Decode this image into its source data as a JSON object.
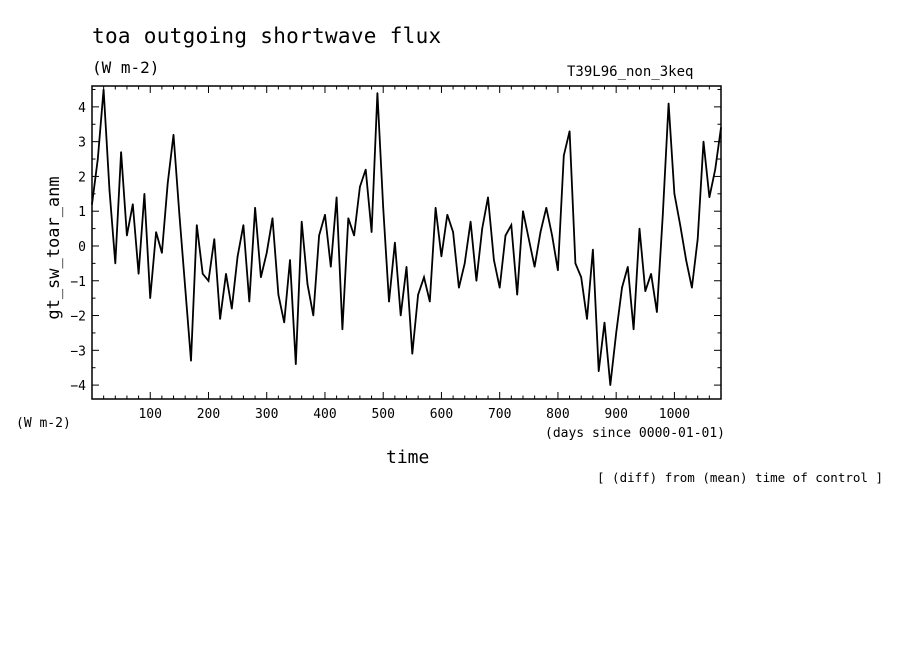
{
  "chart_data": {
    "type": "line",
    "title": "toa outgoing shortwave flux",
    "units_label": "(W m-2)",
    "run_label": "T39L96_non_3keq",
    "ylabel": "gt_sw_toar_anm",
    "y_units": "(W m-2)",
    "xlabel": "time",
    "x_units": "(days since 0000-01-01)",
    "note": "[ (diff) from (mean) time of control ]",
    "xlim": [
      0,
      1080
    ],
    "ylim": [
      -4.4,
      4.6
    ],
    "xticks": [
      100,
      200,
      300,
      400,
      500,
      600,
      700,
      800,
      900,
      1000
    ],
    "yticks": [
      4,
      3,
      2,
      1,
      0,
      -1,
      -2,
      -3,
      -4
    ],
    "grid": false,
    "series": [
      {
        "x": [
          0,
          10,
          20,
          30,
          40,
          50,
          60,
          70,
          80,
          90,
          100,
          110,
          120,
          130,
          140,
          150,
          160,
          170,
          180,
          190,
          200,
          210,
          220,
          230,
          240,
          250,
          260,
          270,
          280,
          290,
          300,
          310,
          320,
          330,
          340,
          350,
          360,
          370,
          380,
          390,
          400,
          410,
          420,
          430,
          440,
          450,
          460,
          470,
          480,
          490,
          500,
          510,
          520,
          530,
          540,
          550,
          560,
          570,
          580,
          590,
          600,
          610,
          620,
          630,
          640,
          650,
          660,
          670,
          680,
          690,
          700,
          710,
          720,
          730,
          740,
          750,
          760,
          770,
          780,
          790,
          800,
          810,
          820,
          830,
          840,
          850,
          860,
          870,
          880,
          890,
          900,
          910,
          920,
          930,
          940,
          950,
          960,
          970,
          980,
          990,
          1000,
          1010,
          1020,
          1030,
          1040,
          1050,
          1060,
          1070,
          1080
        ],
        "values": [
          1.2,
          2.5,
          4.5,
          1.6,
          -0.5,
          2.7,
          0.3,
          1.2,
          -0.8,
          1.5,
          -1.5,
          0.4,
          -0.2,
          1.8,
          3.2,
          0.9,
          -1.2,
          -3.3,
          0.6,
          -0.8,
          -1.0,
          0.2,
          -2.1,
          -0.8,
          -1.8,
          -0.3,
          0.6,
          -1.6,
          1.1,
          -0.9,
          -0.2,
          0.8,
          -1.4,
          -2.2,
          -0.4,
          -3.4,
          0.7,
          -1.1,
          -2.0,
          0.3,
          0.9,
          -0.6,
          1.4,
          -2.4,
          0.8,
          0.3,
          1.7,
          2.2,
          0.4,
          4.4,
          1.1,
          -1.6,
          0.1,
          -2.0,
          -0.6,
          -3.1,
          -1.4,
          -0.9,
          -1.6,
          1.1,
          -0.3,
          0.9,
          0.4,
          -1.2,
          -0.5,
          0.7,
          -1.0,
          0.5,
          1.4,
          -0.4,
          -1.2,
          0.3,
          0.6,
          -1.4,
          1.0,
          0.2,
          -0.6,
          0.4,
          1.1,
          0.3,
          -0.7,
          2.6,
          3.3,
          -0.5,
          -0.9,
          -2.1,
          -0.1,
          -3.6,
          -2.2,
          -4.0,
          -2.5,
          -1.2,
          -0.6,
          -2.4,
          0.5,
          -1.3,
          -0.8,
          -1.9,
          0.9,
          4.1,
          1.5,
          0.6,
          -0.4,
          -1.2,
          0.2,
          3.0,
          1.4,
          2.2,
          3.4
        ]
      }
    ]
  }
}
